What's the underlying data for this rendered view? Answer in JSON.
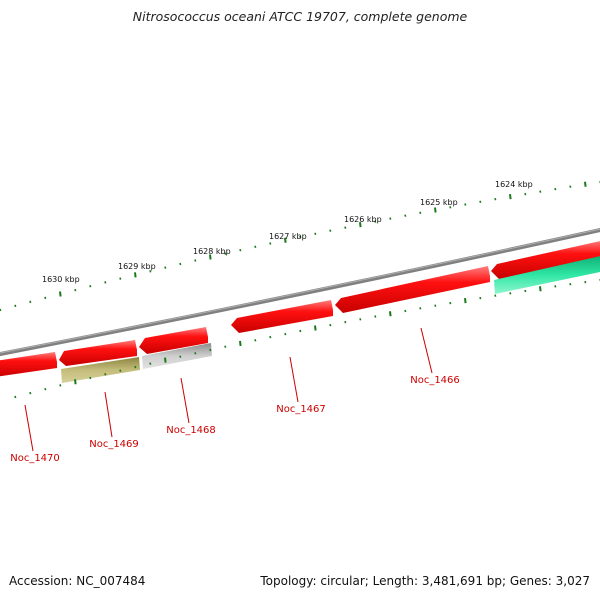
{
  "map": {
    "title": "Nitrosococcus oceani ATCC 19707, complete genome",
    "accession_text": "Accession: NC_007484",
    "summary_text": "Topology: circular; Length: 3,481,691 bp; Genes: 3,027"
  },
  "scale_labels": [
    "1630 kbp",
    "1629 kbp",
    "1628 kbp",
    "1627 kbp",
    "1626 kbp",
    "1625 kbp",
    "1624 kbp"
  ],
  "gene_labels": [
    "Noc_1470",
    "Noc_1469",
    "Noc_1468",
    "Noc_1467",
    "Noc_1466"
  ],
  "colors": {
    "forward_gene": "#ee0000",
    "orf_olive": "#b8b070",
    "orf_grey": "#c4c4c4",
    "orf_teal": "#22dd99",
    "backbone": "#808080",
    "tick": "#1a7a1a",
    "gene_label": "#cc0000"
  }
}
